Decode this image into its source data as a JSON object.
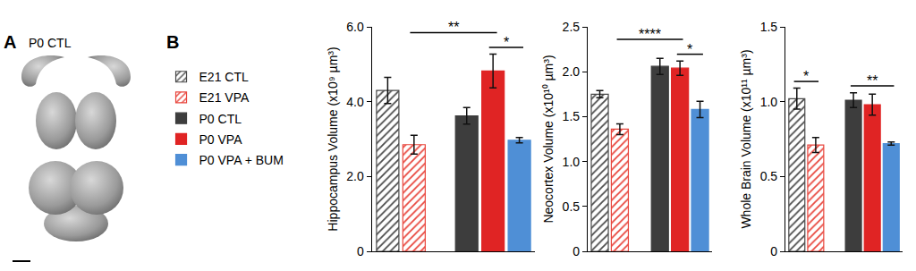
{
  "panel_labels": [
    "A",
    "B"
  ],
  "panel_a": {
    "title": "P0 CTL"
  },
  "chart_data": [
    {
      "type": "bar",
      "y_label": "Hippocampus Volume (x10⁹ µm³)",
      "categories": [
        null,
        null,
        null,
        null,
        null,
        null
      ],
      "series": [
        {
          "name": "E21 CTL",
          "color": "#4a4a4a",
          "marker": "hatch",
          "values": [
            4.3,
            null,
            null,
            null,
            null,
            null
          ],
          "errors": [
            0.35,
            null,
            null,
            null,
            null,
            null
          ]
        },
        {
          "name": "E21 VPA",
          "color": "#e8453c",
          "marker": "hatch",
          "values": [
            null,
            2.85,
            null,
            null,
            null,
            null
          ],
          "errors": [
            null,
            0.25,
            null,
            null,
            null,
            null
          ]
        },
        {
          "name": "P0 CTL",
          "color": "#3d3d3d",
          "marker": "solid",
          "values": [
            null,
            null,
            null,
            3.62,
            null,
            null
          ],
          "errors": [
            null,
            null,
            null,
            0.22,
            null,
            null
          ]
        },
        {
          "name": "P0 VPA",
          "color": "#e02424",
          "marker": "solid",
          "values": [
            null,
            null,
            null,
            null,
            4.82,
            null
          ],
          "errors": [
            null,
            null,
            null,
            null,
            0.45,
            null
          ]
        },
        {
          "name": "P0 VPA + BUM",
          "color": "#4f8fd6",
          "marker": "solid",
          "values": [
            null,
            null,
            null,
            null,
            null,
            2.97
          ],
          "errors": [
            null,
            null,
            null,
            null,
            null,
            0.07
          ]
        }
      ],
      "ylim": [
        0,
        6
      ],
      "yticks": [
        0,
        {
          "value": 2,
          "label": "2.0"
        },
        {
          "value": 4,
          "label": "4.0"
        },
        {
          "value": 6,
          "label": "6.0"
        }
      ],
      "tick_labels": "y",
      "grid": false,
      "legend": "left",
      "annotations": [
        {
          "text": "**",
          "between": [
            1,
            4
          ]
        },
        {
          "text": "*",
          "between": [
            4,
            5
          ]
        }
      ]
    },
    {
      "type": "bar",
      "y_label": "Neocortex Volume (x10¹⁰ µm³)",
      "categories": [
        null,
        null,
        null,
        null,
        null,
        null
      ],
      "series": [
        {
          "name": "E21 CTL",
          "color": "#4a4a4a",
          "marker": "hatch",
          "values": [
            1.75,
            null,
            null,
            null,
            null,
            null
          ],
          "errors": [
            0.04,
            null,
            null,
            null,
            null,
            null
          ]
        },
        {
          "name": "E21 VPA",
          "color": "#e8453c",
          "marker": "hatch",
          "values": [
            null,
            1.36,
            null,
            null,
            null,
            null
          ],
          "errors": [
            null,
            0.06,
            null,
            null,
            null,
            null
          ]
        },
        {
          "name": "P0 CTL",
          "color": "#3d3d3d",
          "marker": "solid",
          "values": [
            null,
            null,
            null,
            2.06,
            null,
            null
          ],
          "errors": [
            null,
            null,
            null,
            0.09,
            null,
            null
          ]
        },
        {
          "name": "P0 VPA",
          "color": "#e02424",
          "marker": "solid",
          "values": [
            null,
            null,
            null,
            null,
            2.04,
            null
          ],
          "errors": [
            null,
            null,
            null,
            null,
            0.08,
            null
          ]
        },
        {
          "name": "P0 VPA + BUM",
          "color": "#4f8fd6",
          "marker": "solid",
          "values": [
            null,
            null,
            null,
            null,
            null,
            1.58
          ],
          "errors": [
            null,
            null,
            null,
            null,
            null,
            0.09
          ]
        }
      ],
      "ylim": [
        0,
        2.5
      ],
      "yticks": [
        0,
        0.5,
        {
          "value": 1,
          "label": "1.0"
        },
        1.5,
        {
          "value": 2,
          "label": "2.0"
        },
        2.5
      ],
      "tick_labels": "y",
      "grid": false,
      "annotations": [
        {
          "text": "****",
          "between": [
            1,
            4
          ]
        },
        {
          "text": "*",
          "between": [
            4,
            5
          ]
        }
      ]
    },
    {
      "type": "bar",
      "y_label": "Whole Brain Volume (x10¹¹ µm³)",
      "categories": [
        null,
        null,
        null,
        null,
        null,
        null
      ],
      "series": [
        {
          "name": "E21 CTL",
          "color": "#4a4a4a",
          "marker": "hatch",
          "values": [
            1.02,
            null,
            null,
            null,
            null,
            null
          ],
          "errors": [
            0.07,
            null,
            null,
            null,
            null,
            null
          ]
        },
        {
          "name": "E21 VPA",
          "color": "#e8453c",
          "marker": "hatch",
          "values": [
            null,
            0.71,
            null,
            null,
            null,
            null
          ],
          "errors": [
            null,
            0.05,
            null,
            null,
            null,
            null
          ]
        },
        {
          "name": "P0 CTL",
          "color": "#3d3d3d",
          "marker": "solid",
          "values": [
            null,
            null,
            null,
            1.01,
            null,
            null
          ],
          "errors": [
            null,
            null,
            null,
            0.05,
            null,
            null
          ]
        },
        {
          "name": "P0 VPA",
          "color": "#e02424",
          "marker": "solid",
          "values": [
            null,
            null,
            null,
            null,
            0.98,
            null
          ],
          "errors": [
            null,
            null,
            null,
            null,
            0.07,
            null
          ]
        },
        {
          "name": "P0 VPA + BUM",
          "color": "#4f8fd6",
          "marker": "solid",
          "values": [
            null,
            null,
            null,
            null,
            null,
            0.72
          ],
          "errors": [
            null,
            null,
            null,
            null,
            null,
            0.01
          ]
        }
      ],
      "ylim": [
        0,
        1.5
      ],
      "yticks": [
        0,
        0.5,
        {
          "value": 1,
          "label": "1.0"
        },
        1.5
      ],
      "tick_labels": "y",
      "grid": false,
      "annotations": [
        {
          "text": "*",
          "between": [
            0,
            1
          ]
        },
        {
          "text": "**",
          "between": [
            3,
            5
          ]
        }
      ]
    }
  ]
}
